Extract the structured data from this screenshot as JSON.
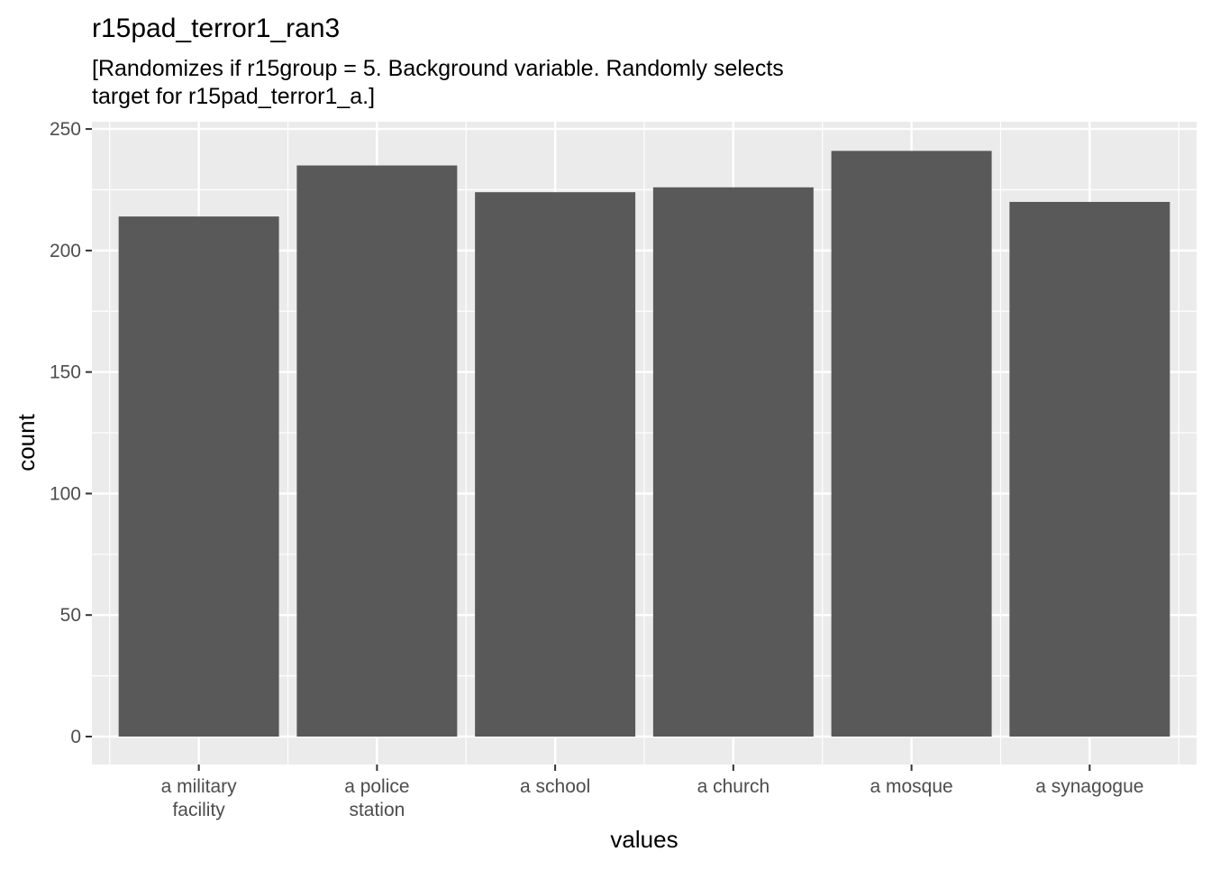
{
  "chart_data": {
    "type": "bar",
    "title": "r15pad_terror1_ran3",
    "subtitle_lines": [
      "[Randomizes if r15group = 5. Background variable. Randomly selects",
      "target for r15pad_terror1_a.]"
    ],
    "xlabel": "values",
    "ylabel": "count",
    "categories": [
      [
        "a military",
        "facility"
      ],
      [
        "a police",
        "station"
      ],
      [
        "a school"
      ],
      [
        "a church"
      ],
      [
        "a mosque"
      ],
      [
        "a synagogue"
      ]
    ],
    "values": [
      214,
      235,
      224,
      226,
      241,
      220
    ],
    "ylim": [
      -11.5,
      253
    ],
    "yticks": [
      0,
      50,
      100,
      150,
      200,
      250
    ],
    "grid": true,
    "colors": {
      "panel": "#ebebeb",
      "grid": "#ffffff",
      "bar": "#595959",
      "tick": "#333333"
    }
  }
}
